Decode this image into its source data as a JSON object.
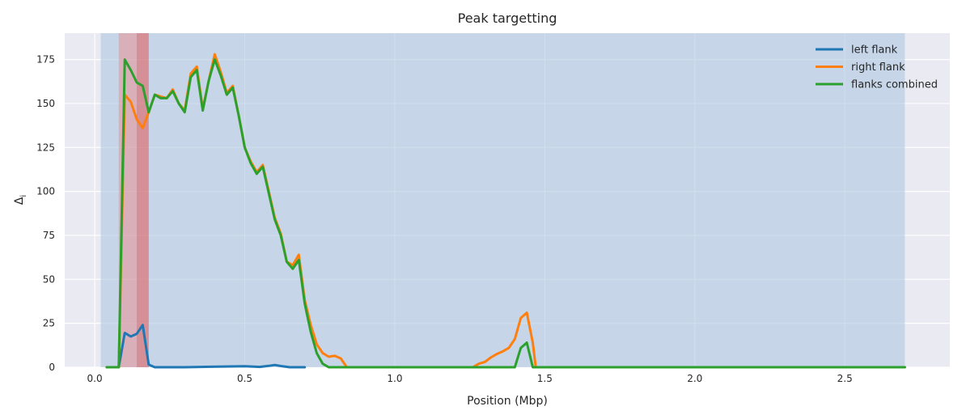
{
  "chart_data": {
    "type": "line",
    "title": "Peak targetting",
    "xlabel": "Position (Mbp)",
    "ylabel": "Δ",
    "ylabel_subscript": "i",
    "xlim": [
      -0.1,
      2.85
    ],
    "ylim": [
      0,
      190
    ],
    "xticks": [
      0.0,
      0.5,
      1.0,
      1.5,
      2.0,
      2.5
    ],
    "xtick_labels": [
      "0.0",
      "0.5",
      "1.0",
      "1.5",
      "2.0",
      "2.5"
    ],
    "yticks": [
      0,
      25,
      50,
      75,
      100,
      125,
      150,
      175
    ],
    "ytick_labels": [
      "0",
      "25",
      "50",
      "75",
      "100",
      "125",
      "150",
      "175"
    ],
    "grid": true,
    "legend_position": "top-right",
    "background_color": "#eaeaf2",
    "shaded_regions": [
      {
        "x0": 0.02,
        "x1": 2.7,
        "color": "#a7c3df",
        "opacity": 0.55
      },
      {
        "x0": 0.08,
        "x1": 0.14,
        "color": "#f08080",
        "opacity": 0.45
      },
      {
        "x0": 0.14,
        "x1": 0.18,
        "color": "#e06060",
        "opacity": 0.6
      }
    ],
    "series": [
      {
        "name": "left flank",
        "color": "#1f77b4",
        "x": [
          0.04,
          0.08,
          0.1,
          0.12,
          0.14,
          0.16,
          0.18,
          0.2,
          0.25,
          0.3,
          0.5,
          0.55,
          0.58,
          0.6,
          0.62,
          0.65,
          0.7
        ],
        "y": [
          0,
          0,
          19.5,
          17.5,
          19,
          24,
          1.5,
          0,
          0,
          0,
          0.6,
          0.2,
          0.8,
          1.3,
          0.7,
          0,
          0
        ]
      },
      {
        "name": "right flank",
        "color": "#ff7f0e",
        "x": [
          0.04,
          0.08,
          0.1,
          0.12,
          0.14,
          0.16,
          0.18,
          0.2,
          0.22,
          0.24,
          0.26,
          0.28,
          0.3,
          0.32,
          0.34,
          0.36,
          0.38,
          0.4,
          0.42,
          0.44,
          0.46,
          0.48,
          0.5,
          0.52,
          0.54,
          0.56,
          0.58,
          0.6,
          0.62,
          0.64,
          0.66,
          0.68,
          0.7,
          0.72,
          0.74,
          0.76,
          0.78,
          0.8,
          0.82,
          0.84,
          0.86,
          1.0,
          1.2,
          1.26,
          1.28,
          1.3,
          1.32,
          1.34,
          1.36,
          1.38,
          1.4,
          1.42,
          1.44,
          1.46,
          1.47,
          1.5,
          2.7
        ],
        "y": [
          0,
          0,
          155,
          151,
          141,
          136,
          145,
          155,
          154,
          153,
          158,
          150,
          146,
          167,
          171,
          147,
          163,
          178,
          168,
          156,
          160,
          143,
          125,
          117,
          111,
          115,
          100,
          85,
          76,
          60,
          58,
          64,
          38,
          24,
          13,
          8,
          6,
          6.5,
          5,
          0,
          0,
          0,
          0,
          0,
          2,
          3,
          5.5,
          7.5,
          9,
          11,
          16,
          28,
          31,
          14,
          0,
          0,
          0
        ]
      },
      {
        "name": "flanks combined",
        "color": "#2ca02c",
        "x": [
          0.04,
          0.08,
          0.1,
          0.12,
          0.14,
          0.16,
          0.18,
          0.2,
          0.22,
          0.24,
          0.26,
          0.28,
          0.3,
          0.32,
          0.34,
          0.36,
          0.38,
          0.4,
          0.42,
          0.44,
          0.46,
          0.48,
          0.5,
          0.52,
          0.54,
          0.56,
          0.58,
          0.6,
          0.62,
          0.64,
          0.66,
          0.68,
          0.7,
          0.72,
          0.74,
          0.76,
          0.78,
          1.0,
          1.38,
          1.4,
          1.42,
          1.44,
          1.46,
          1.47,
          1.5,
          2.7
        ],
        "y": [
          0,
          0,
          175,
          169,
          162,
          160,
          145,
          155,
          153,
          153,
          157,
          150,
          145,
          165,
          169,
          146,
          163,
          175,
          166,
          155,
          159,
          143,
          125,
          116,
          110,
          114,
          99,
          84,
          75,
          60,
          56,
          61,
          36,
          20,
          8,
          2,
          0,
          0,
          0,
          0,
          11,
          14,
          0,
          0,
          0,
          0
        ]
      }
    ]
  }
}
